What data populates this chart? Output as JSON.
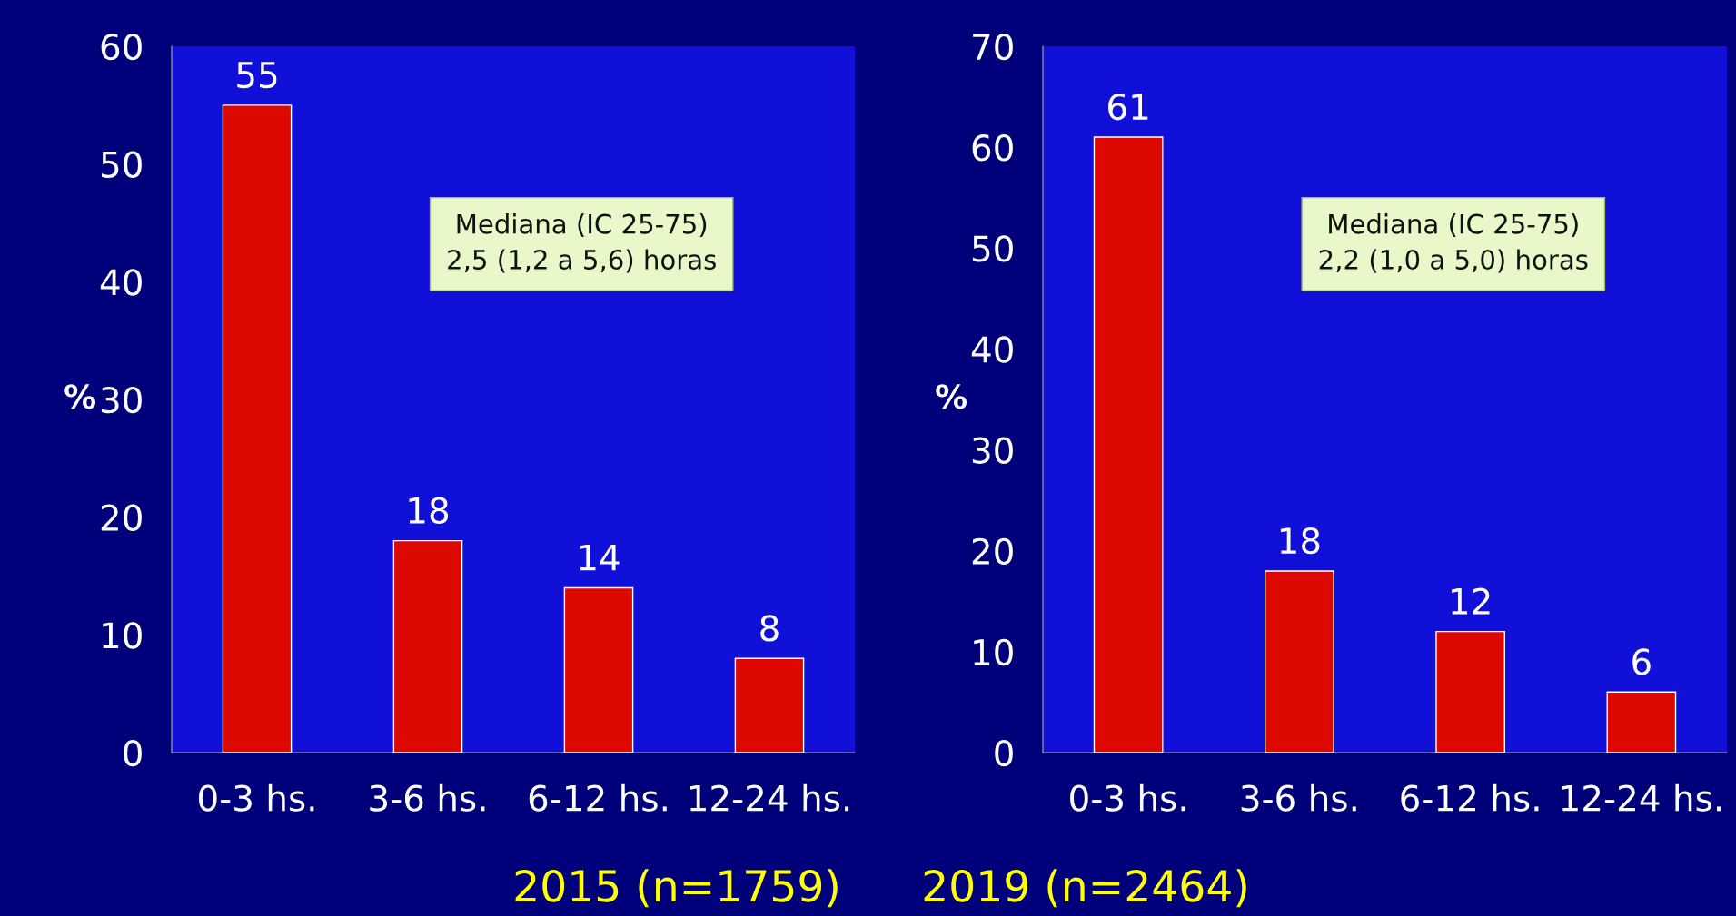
{
  "chart_data": [
    {
      "type": "bar",
      "title": "2015 (n=1759)",
      "ylabel": "%",
      "categories": [
        "0-3 hs.",
        "3-6 hs.",
        "6-12 hs.",
        "12-24 hs."
      ],
      "values": [
        55,
        18,
        14,
        8
      ],
      "color": "#dd0800",
      "ylim": [
        0,
        60
      ],
      "yticks": [
        0,
        10,
        20,
        30,
        40,
        50,
        60
      ],
      "data_labels": true,
      "grid": false,
      "annotations": [
        "Mediana (IC 25-75)\n2,5 (1,2 a 5,6) horas"
      ]
    },
    {
      "type": "bar",
      "title": "2019 (n=2464)",
      "ylabel": "%",
      "categories": [
        "0-3 hs.",
        "3-6 hs.",
        "6-12 hs.",
        "12-24 hs."
      ],
      "values": [
        61,
        18,
        12,
        6
      ],
      "color": "#dd0800",
      "ylim": [
        0,
        70
      ],
      "yticks": [
        0,
        10,
        20,
        30,
        40,
        50,
        60,
        70
      ],
      "data_labels": true,
      "grid": false,
      "annotations": [
        "Mediana (IC 25-75)\n2,2 (1,0 a 5,0) horas"
      ]
    }
  ]
}
